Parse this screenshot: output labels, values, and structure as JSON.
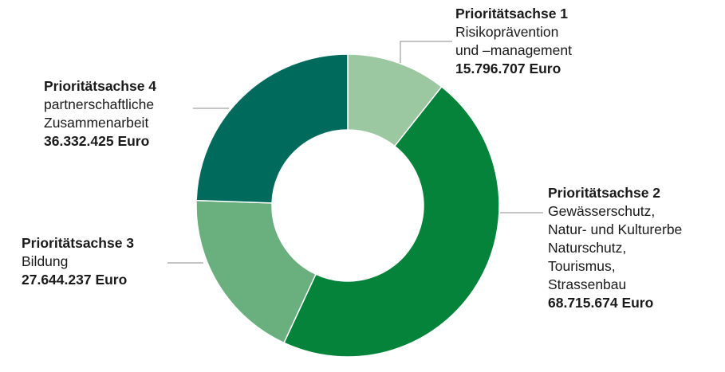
{
  "chart_data": {
    "type": "pie",
    "title": "",
    "categories": [
      "Prioritätsachse 1",
      "Prioritätsachse 2",
      "Prioritätsachse 3",
      "Prioritätsachse 4"
    ],
    "values": [
      15796707,
      68715674,
      27644237,
      36332425
    ],
    "colors": [
      "#9cc8a1",
      "#05833a",
      "#6aaf7e",
      "#006b5c"
    ],
    "slices": [
      {
        "title": "Prioritätsachse 1",
        "desc": [
          "Risikoprävention",
          "und –management"
        ],
        "value_label": "15.796.707 Euro"
      },
      {
        "title": "Prioritätsachse 2",
        "desc": [
          "Gewässerschutz,",
          "Natur- und Kulturerbe",
          "Naturschutz,",
          "Tourismus,",
          "Strassenbau"
        ],
        "value_label": "68.715.674 Euro"
      },
      {
        "title": "Prioritätsachse 3",
        "desc": [
          "Bildung"
        ],
        "value_label": "27.644.237 Euro"
      },
      {
        "title": "Prioritätsachse 4",
        "desc": [
          "partnerschaftliche",
          "Zusammenarbeit"
        ],
        "value_label": "36.332.425 Euro"
      }
    ]
  }
}
